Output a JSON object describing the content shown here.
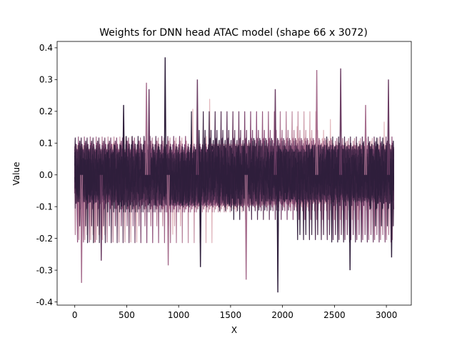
{
  "chart_data": {
    "type": "line",
    "title": "Weights for DNN head ATAC model (shape 66 x 3072)",
    "xlabel": "X",
    "ylabel": "Value",
    "xlim": [
      -170,
      3240
    ],
    "ylim": [
      -0.41,
      0.42
    ],
    "xticks": [
      0,
      500,
      1000,
      1500,
      2000,
      2500,
      3000
    ],
    "yticks": [
      -0.4,
      -0.3,
      -0.2,
      -0.1,
      0.0,
      0.1,
      0.2,
      0.3,
      0.4
    ],
    "x_range": [
      0,
      3071
    ],
    "series_count": 66,
    "typical_band": [
      -0.1,
      0.1
    ],
    "color_light": "#e3b8bd",
    "color_mid": "#8c4d78",
    "color_dark": "#2e1e3b",
    "notable_peaks": [
      {
        "x": 65,
        "y": -0.34
      },
      {
        "x": 255,
        "y": -0.27
      },
      {
        "x": 470,
        "y": 0.22
      },
      {
        "x": 690,
        "y": 0.29
      },
      {
        "x": 715,
        "y": 0.27
      },
      {
        "x": 870,
        "y": 0.37
      },
      {
        "x": 900,
        "y": -0.285
      },
      {
        "x": 1180,
        "y": 0.3
      },
      {
        "x": 1210,
        "y": -0.29
      },
      {
        "x": 1650,
        "y": -0.33
      },
      {
        "x": 1930,
        "y": 0.27
      },
      {
        "x": 1955,
        "y": -0.37
      },
      {
        "x": 2330,
        "y": 0.33
      },
      {
        "x": 2560,
        "y": 0.335
      },
      {
        "x": 2650,
        "y": -0.3
      },
      {
        "x": 2800,
        "y": 0.22
      },
      {
        "x": 3020,
        "y": 0.3
      },
      {
        "x": 3050,
        "y": -0.26
      }
    ]
  }
}
